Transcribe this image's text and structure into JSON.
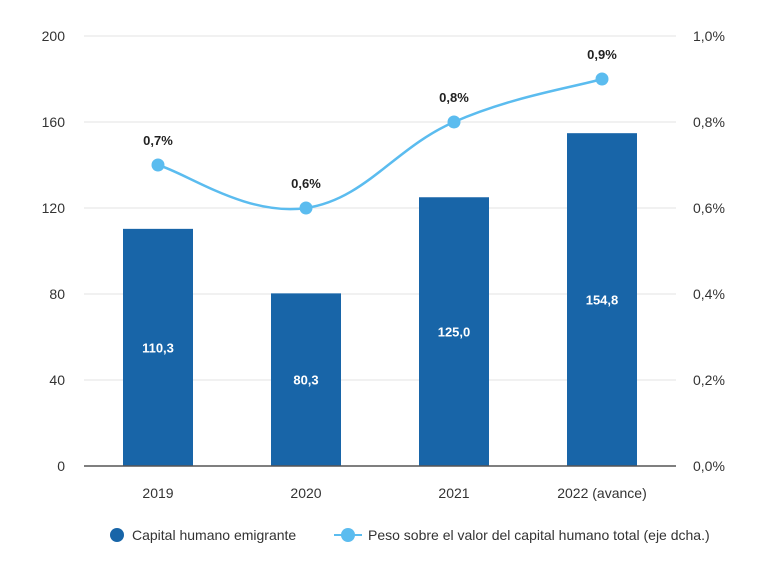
{
  "chart_data": {
    "type": "bar",
    "categories": [
      "2019",
      "2020",
      "2021",
      "2022 (avance)"
    ],
    "series": [
      {
        "name": "Capital humano emigrante",
        "kind": "bar",
        "axis": "left",
        "color": "#1865a8",
        "values": [
          110.3,
          80.3,
          125.0,
          154.8
        ],
        "labels": [
          "110,3",
          "80,3",
          "125,0",
          "154,8"
        ]
      },
      {
        "name": "Peso sobre el valor del capital humano total (eje dcha.)",
        "kind": "line",
        "axis": "right",
        "color": "#5bbcef",
        "values": [
          0.7,
          0.6,
          0.8,
          0.9
        ],
        "labels": [
          "0,7%",
          "0,6%",
          "0,8%",
          "0,9%"
        ]
      }
    ],
    "y_left": {
      "ylim": [
        0,
        200
      ],
      "ticks": [
        0,
        40,
        80,
        120,
        160,
        200
      ],
      "tick_labels": [
        "0",
        "40",
        "80",
        "120",
        "160",
        "200"
      ]
    },
    "y_right": {
      "ylim": [
        0,
        1.0
      ],
      "ticks": [
        0,
        0.2,
        0.4,
        0.6,
        0.8,
        1.0
      ],
      "tick_labels": [
        "0,0%",
        "0,2%",
        "0,4%",
        "0,6%",
        "0,8%",
        "1,0%"
      ]
    },
    "grid": true,
    "legend_position": "bottom"
  }
}
